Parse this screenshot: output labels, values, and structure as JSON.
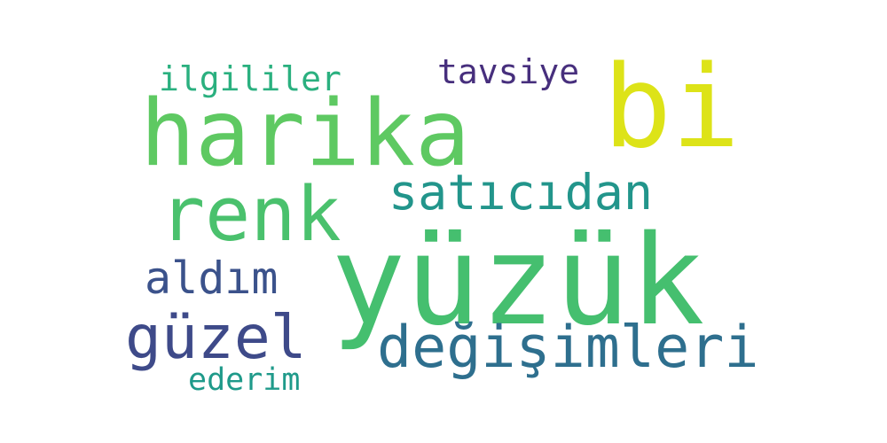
{
  "wordcloud": {
    "background": "#ffffff",
    "words": [
      {
        "text": "yüzük",
        "color": "#45bf6f"
      },
      {
        "text": "harika",
        "color": "#5ec962"
      },
      {
        "text": "bi",
        "color": "#dde318"
      },
      {
        "text": "renk",
        "color": "#4ac16d"
      },
      {
        "text": "satıcıdan",
        "color": "#22958b"
      },
      {
        "text": "aldım",
        "color": "#3b528b"
      },
      {
        "text": "güzel",
        "color": "#3e4a89"
      },
      {
        "text": "değişimleri",
        "color": "#2e6f8e"
      },
      {
        "text": "ilgililer",
        "color": "#2ab07f"
      },
      {
        "text": "tavsiye",
        "color": "#472f7d"
      },
      {
        "text": "ederim",
        "color": "#1f9a8a"
      }
    ]
  }
}
